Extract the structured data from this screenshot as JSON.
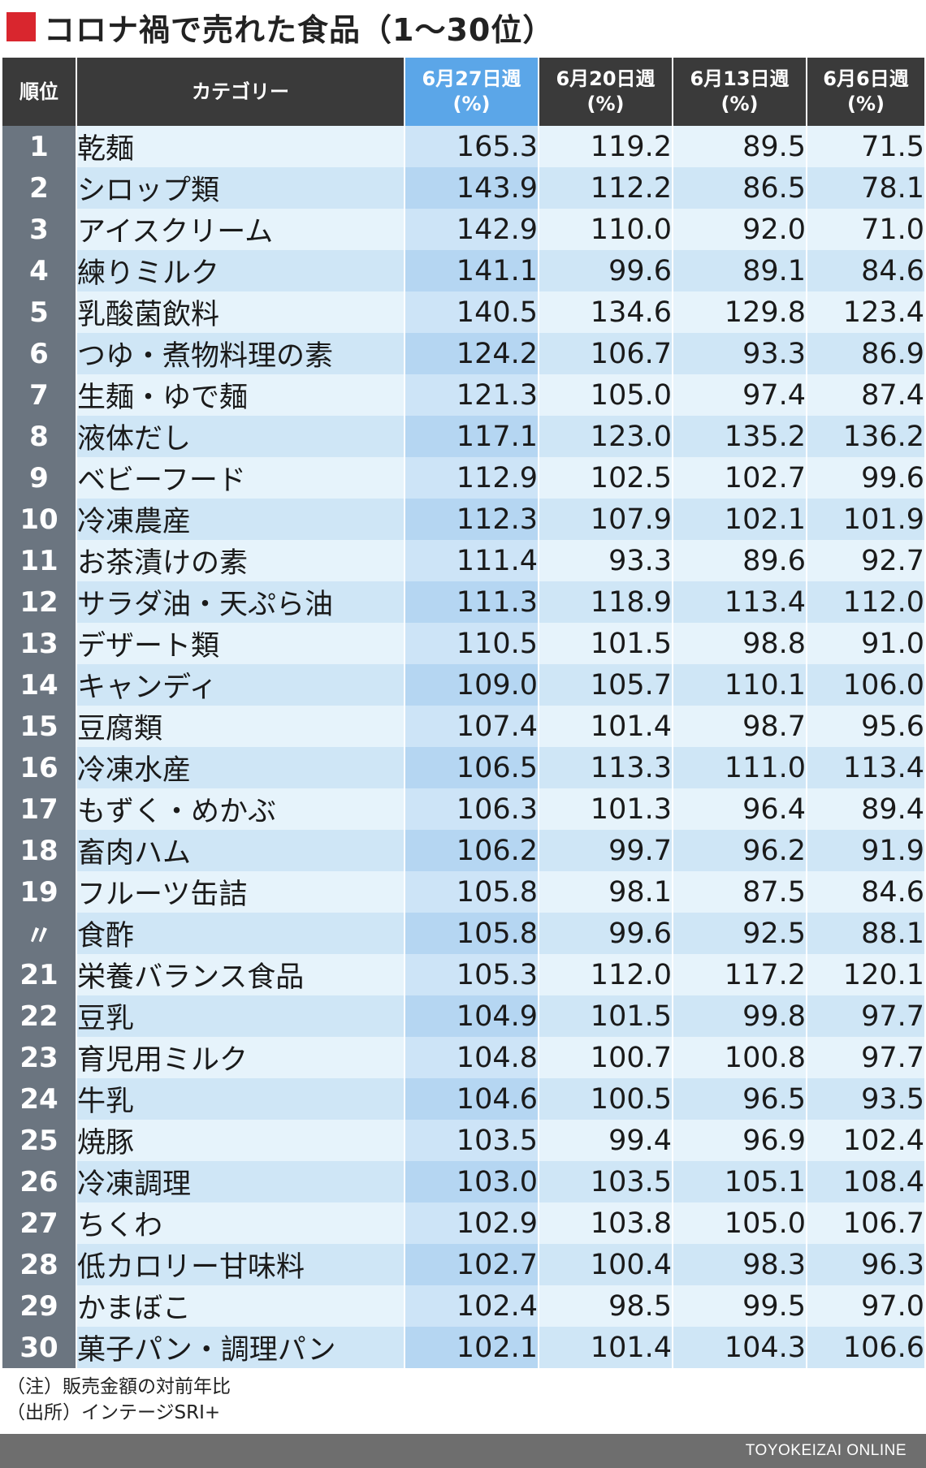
{
  "title": "コロナ禍で売れた食品（1〜30位）",
  "accent_color": "#d9262e",
  "header": {
    "rank": "順位",
    "category": "カテゴリー",
    "weeks": [
      {
        "line1": "6月27日週",
        "line2": "(%)",
        "highlight": true
      },
      {
        "line1": "6月20日週",
        "line2": "(%)",
        "highlight": false
      },
      {
        "line1": "6月13日週",
        "line2": "(%)",
        "highlight": false
      },
      {
        "line1": "6月6日週",
        "line2": "(%)",
        "highlight": false
      }
    ]
  },
  "chart_data": {
    "type": "table",
    "title": "コロナ禍で売れた食品（1〜30位）",
    "columns": [
      "順位",
      "カテゴリー",
      "6月27日週(%)",
      "6月20日週(%)",
      "6月13日週(%)",
      "6月6日週(%)"
    ],
    "rows": [
      {
        "rank": "1",
        "category": "乾麺",
        "values": [
          "165.3",
          "119.2",
          "89.5",
          "71.5"
        ]
      },
      {
        "rank": "2",
        "category": "シロップ類",
        "values": [
          "143.9",
          "112.2",
          "86.5",
          "78.1"
        ]
      },
      {
        "rank": "3",
        "category": "アイスクリーム",
        "values": [
          "142.9",
          "110.0",
          "92.0",
          "71.0"
        ]
      },
      {
        "rank": "4",
        "category": "練りミルク",
        "values": [
          "141.1",
          "99.6",
          "89.1",
          "84.6"
        ]
      },
      {
        "rank": "5",
        "category": "乳酸菌飲料",
        "values": [
          "140.5",
          "134.6",
          "129.8",
          "123.4"
        ]
      },
      {
        "rank": "6",
        "category": "つゆ・煮物料理の素",
        "values": [
          "124.2",
          "106.7",
          "93.3",
          "86.9"
        ]
      },
      {
        "rank": "7",
        "category": "生麺・ゆで麺",
        "values": [
          "121.3",
          "105.0",
          "97.4",
          "87.4"
        ]
      },
      {
        "rank": "8",
        "category": "液体だし",
        "values": [
          "117.1",
          "123.0",
          "135.2",
          "136.2"
        ]
      },
      {
        "rank": "9",
        "category": "ベビーフード",
        "values": [
          "112.9",
          "102.5",
          "102.7",
          "99.6"
        ]
      },
      {
        "rank": "10",
        "category": "冷凍農産",
        "values": [
          "112.3",
          "107.9",
          "102.1",
          "101.9"
        ]
      },
      {
        "rank": "11",
        "category": "お茶漬けの素",
        "values": [
          "111.4",
          "93.3",
          "89.6",
          "92.7"
        ]
      },
      {
        "rank": "12",
        "category": "サラダ油・天ぷら油",
        "values": [
          "111.3",
          "118.9",
          "113.4",
          "112.0"
        ]
      },
      {
        "rank": "13",
        "category": "デザート類",
        "values": [
          "110.5",
          "101.5",
          "98.8",
          "91.0"
        ]
      },
      {
        "rank": "14",
        "category": "キャンディ",
        "values": [
          "109.0",
          "105.7",
          "110.1",
          "106.0"
        ]
      },
      {
        "rank": "15",
        "category": "豆腐類",
        "values": [
          "107.4",
          "101.4",
          "98.7",
          "95.6"
        ]
      },
      {
        "rank": "16",
        "category": "冷凍水産",
        "values": [
          "106.5",
          "113.3",
          "111.0",
          "113.4"
        ]
      },
      {
        "rank": "17",
        "category": "もずく・めかぶ",
        "values": [
          "106.3",
          "101.3",
          "96.4",
          "89.4"
        ]
      },
      {
        "rank": "18",
        "category": "畜肉ハム",
        "values": [
          "106.2",
          "99.7",
          "96.2",
          "91.9"
        ]
      },
      {
        "rank": "19",
        "category": "フルーツ缶詰",
        "values": [
          "105.8",
          "98.1",
          "87.5",
          "84.6"
        ]
      },
      {
        "rank": "〃",
        "category": "食酢",
        "values": [
          "105.8",
          "99.6",
          "92.5",
          "88.1"
        ]
      },
      {
        "rank": "21",
        "category": "栄養バランス食品",
        "values": [
          "105.3",
          "112.0",
          "117.2",
          "120.1"
        ]
      },
      {
        "rank": "22",
        "category": "豆乳",
        "values": [
          "104.9",
          "101.5",
          "99.8",
          "97.7"
        ]
      },
      {
        "rank": "23",
        "category": "育児用ミルク",
        "values": [
          "104.8",
          "100.7",
          "100.8",
          "97.7"
        ]
      },
      {
        "rank": "24",
        "category": "牛乳",
        "values": [
          "104.6",
          "100.5",
          "96.5",
          "93.5"
        ]
      },
      {
        "rank": "25",
        "category": "焼豚",
        "values": [
          "103.5",
          "99.4",
          "96.9",
          "102.4"
        ]
      },
      {
        "rank": "26",
        "category": "冷凍調理",
        "values": [
          "103.0",
          "103.5",
          "105.1",
          "108.4"
        ]
      },
      {
        "rank": "27",
        "category": "ちくわ",
        "values": [
          "102.9",
          "103.8",
          "105.0",
          "106.7"
        ]
      },
      {
        "rank": "28",
        "category": "低カロリー甘味料",
        "values": [
          "102.7",
          "100.4",
          "98.3",
          "96.3"
        ]
      },
      {
        "rank": "29",
        "category": "かまぼこ",
        "values": [
          "102.4",
          "98.5",
          "99.5",
          "97.0"
        ]
      },
      {
        "rank": "30",
        "category": "菓子パン・調理パン",
        "values": [
          "102.1",
          "101.4",
          "104.3",
          "106.6"
        ]
      }
    ]
  },
  "notes": {
    "note": "（注）販売金額の対前年比",
    "source": "（出所）インテージSRI+"
  },
  "footer": {
    "brand": "TOYOKEIZAI ONLINE",
    "bar_color": "#6e6e6e"
  }
}
